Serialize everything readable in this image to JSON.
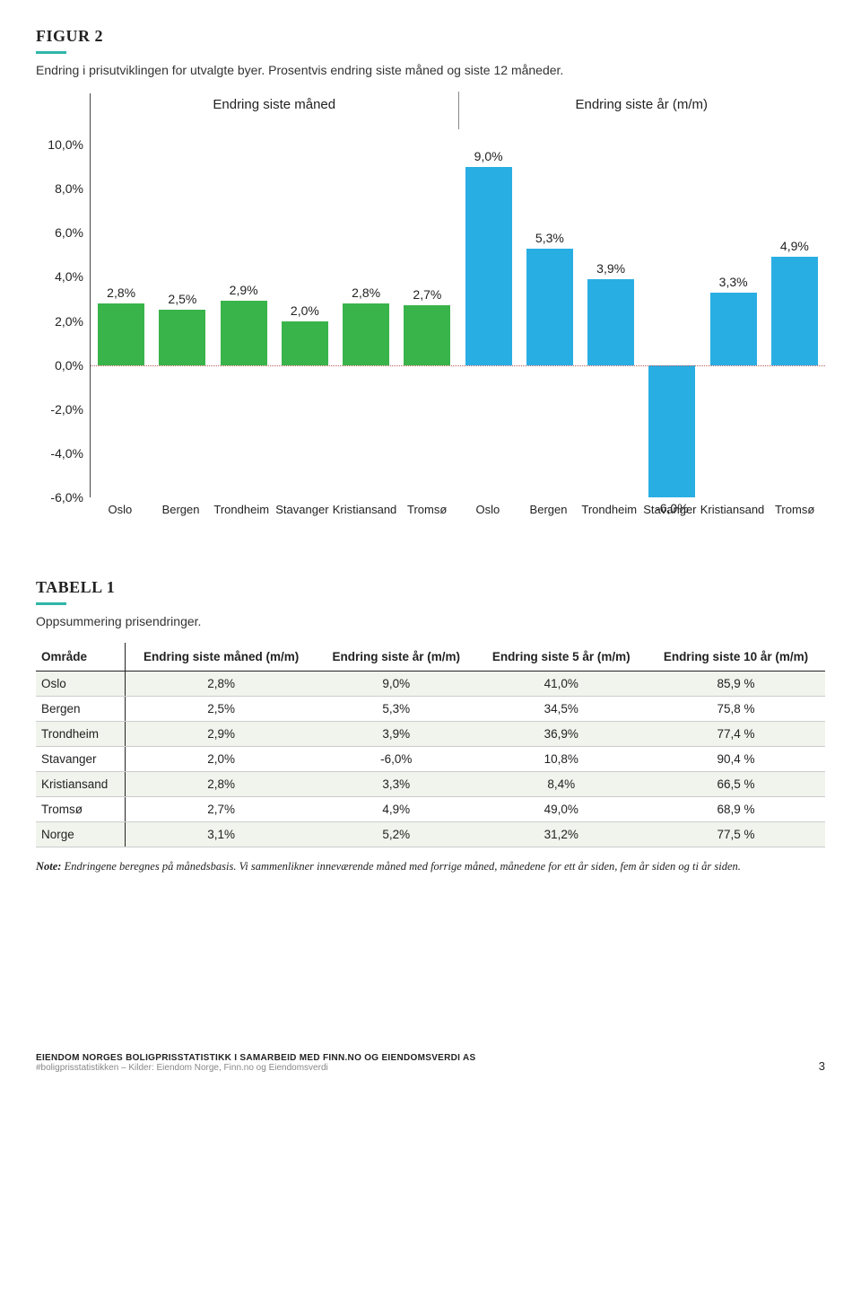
{
  "accent_color": "#2fb6a8",
  "figure": {
    "title": "FIGUR 2",
    "subtitle": "Endring i prisutviklingen for utvalgte byer. Prosentvis endring siste måned og siste 12 måneder.",
    "series_labels": [
      "Endring siste måned",
      "Endring siste år (m/m)"
    ],
    "categories": [
      "Oslo",
      "Bergen",
      "Trondheim",
      "Stavanger",
      "Kristiansand",
      "Tromsø",
      "Oslo",
      "Bergen",
      "Trondheim",
      "Stavanger",
      "Kristiansand",
      "Tromsø"
    ],
    "values": [
      2.8,
      2.5,
      2.9,
      2.0,
      2.8,
      2.7,
      9.0,
      5.3,
      3.9,
      -6.0,
      3.3,
      4.9
    ],
    "value_labels": [
      "2,8%",
      "2,5%",
      "2,9%",
      "2,0%",
      "2,8%",
      "2,7%",
      "9,0%",
      "5,3%",
      "3,9%",
      "-6,0%",
      "3,3%",
      "4,9%"
    ],
    "colors": [
      "#39b44a",
      "#39b44a",
      "#39b44a",
      "#39b44a",
      "#39b44a",
      "#39b44a",
      "#29aee3",
      "#29aee3",
      "#29aee3",
      "#29aee3",
      "#29aee3",
      "#29aee3"
    ],
    "y_min": -6.0,
    "y_top": 10.7,
    "y_ticks": [
      10.0,
      8.0,
      6.0,
      4.0,
      2.0,
      0.0,
      -2.0,
      -4.0,
      -6.0
    ],
    "y_tick_labels": [
      "10,0%",
      "8,0%",
      "6,0%",
      "4,0%",
      "2,0%",
      "0,0%",
      "-2,0%",
      "-4,0%",
      "-6,0%"
    ],
    "zero_color": "#b85c5c",
    "background": "#ffffff"
  },
  "table": {
    "title": "TABELL 1",
    "subtitle": "Oppsummering prisendringer.",
    "columns": [
      "Område",
      "Endring siste måned (m/m)",
      "Endring siste år (m/m)",
      "Endring siste 5 år (m/m)",
      "Endring siste 10 år (m/m)"
    ],
    "rows": [
      [
        "Oslo",
        "2,8%",
        "9,0%",
        "41,0%",
        "85,9 %"
      ],
      [
        "Bergen",
        "2,5%",
        "5,3%",
        "34,5%",
        "75,8 %"
      ],
      [
        "Trondheim",
        "2,9%",
        "3,9%",
        "36,9%",
        "77,4 %"
      ],
      [
        "Stavanger",
        "2,0%",
        "-6,0%",
        "10,8%",
        "90,4 %"
      ],
      [
        "Kristiansand",
        "2,8%",
        "3,3%",
        "8,4%",
        "66,5 %"
      ],
      [
        "Tromsø",
        "2,7%",
        "4,9%",
        "49,0%",
        "68,9 %"
      ],
      [
        "Norge",
        "3,1%",
        "5,2%",
        "31,2%",
        "77,5 %"
      ]
    ],
    "alt_row_bg": "#f0f4ec"
  },
  "note_label": "Note:",
  "note_text": " Endringene beregnes på månedsbasis. Vi sammenlikner inneværende måned med forrige måned, månedene for ett år siden, fem år siden og ti år siden.",
  "footer": {
    "line1": "EIENDOM NORGES BOLIGPRISSTATISTIKK I SAMARBEID MED FINN.NO OG EIENDOMSVERDI AS",
    "line2": "#boligprisstatistikken – Kilder: Eiendom Norge, Finn.no og Eiendomsverdi",
    "page": "3"
  }
}
